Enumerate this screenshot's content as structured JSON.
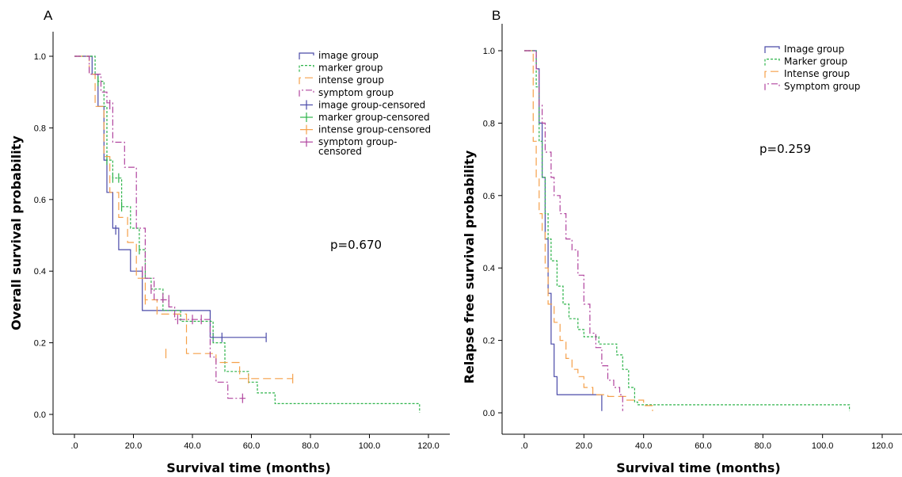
{
  "panels": {
    "a": {
      "letter": "A"
    },
    "b": {
      "letter": "B"
    }
  },
  "chart_data": [
    {
      "type": "line",
      "panel": "A",
      "xlabel": "Survival time (months)",
      "ylabel": "Overall survival probability",
      "xlim": [
        0,
        120
      ],
      "ylim": [
        0,
        1.0
      ],
      "x_ticks": [
        0,
        20,
        40,
        60,
        80,
        100,
        120
      ],
      "x_tick_labels": [
        ".0",
        "20.0",
        "40.0",
        "60.0",
        "80.0",
        "100.0",
        "120.0"
      ],
      "y_ticks": [
        0,
        0.2,
        0.4,
        0.6,
        0.8,
        1.0
      ],
      "y_tick_labels": [
        "0.0",
        "0.2",
        "0.4",
        "0.6",
        "0.8",
        "1.0"
      ],
      "grid": false,
      "legend_position": "top-right",
      "annotation": "p=0.670",
      "legend": [
        "image group",
        "marker group",
        "intense group",
        "symptom group",
        "image group-censored",
        "marker group-censored",
        "intense group-censored",
        "symptom group-\ncensored"
      ],
      "series": [
        {
          "name": "image group",
          "color": "#4a4aa8",
          "dash": "",
          "steps": [
            [
              0,
              1.0
            ],
            [
              6,
              0.95
            ],
            [
              8,
              0.86
            ],
            [
              10,
              0.71
            ],
            [
              11,
              0.62
            ],
            [
              13,
              0.52
            ],
            [
              15,
              0.46
            ],
            [
              19,
              0.4
            ],
            [
              23,
              0.29
            ],
            [
              46,
              0.215
            ],
            [
              65,
              0.215
            ]
          ],
          "censored": [
            [
              14,
              0.515
            ],
            [
              47,
              0.215
            ],
            [
              50,
              0.215
            ],
            [
              65,
              0.215
            ]
          ]
        },
        {
          "name": "marker group",
          "color": "#2db34a",
          "dash": "3,2",
          "steps": [
            [
              0,
              1.0
            ],
            [
              7,
              0.95
            ],
            [
              8,
              0.93
            ],
            [
              10,
              0.86
            ],
            [
              11,
              0.71
            ],
            [
              13,
              0.66
            ],
            [
              16,
              0.58
            ],
            [
              19,
              0.52
            ],
            [
              22,
              0.46
            ],
            [
              24,
              0.38
            ],
            [
              26,
              0.35
            ],
            [
              30,
              0.29
            ],
            [
              36,
              0.26
            ],
            [
              47,
              0.2
            ],
            [
              51,
              0.12
            ],
            [
              59,
              0.09
            ],
            [
              62,
              0.06
            ],
            [
              68,
              0.03
            ],
            [
              117,
              0.03
            ],
            [
              117,
              0.005
            ]
          ],
          "censored": [
            [
              8,
              0.93
            ],
            [
              11,
              0.71
            ],
            [
              13,
              0.66
            ],
            [
              15,
              0.66
            ],
            [
              16,
              0.58
            ],
            [
              22,
              0.46
            ]
          ]
        },
        {
          "name": "intense group",
          "color": "#f5a04a",
          "dash": "10,5",
          "steps": [
            [
              0,
              1.0
            ],
            [
              5,
              0.95
            ],
            [
              7,
              0.86
            ],
            [
              10,
              0.72
            ],
            [
              12,
              0.62
            ],
            [
              15,
              0.55
            ],
            [
              18,
              0.48
            ],
            [
              21,
              0.38
            ],
            [
              24,
              0.32
            ],
            [
              28,
              0.28
            ],
            [
              38,
              0.17
            ],
            [
              48,
              0.145
            ],
            [
              56,
              0.1
            ],
            [
              74,
              0.1
            ]
          ],
          "censored": [
            [
              24,
              0.32
            ],
            [
              31,
              0.17
            ],
            [
              59,
              0.1
            ],
            [
              74,
              0.1
            ]
          ]
        },
        {
          "name": "symptom group",
          "color": "#b0449e",
          "dash": "8,3,2,3",
          "steps": [
            [
              0,
              1.0
            ],
            [
              5,
              0.95
            ],
            [
              9,
              0.9
            ],
            [
              11,
              0.87
            ],
            [
              13,
              0.76
            ],
            [
              17,
              0.69
            ],
            [
              21,
              0.52
            ],
            [
              24,
              0.38
            ],
            [
              27,
              0.32
            ],
            [
              32,
              0.3
            ],
            [
              34,
              0.265
            ],
            [
              43,
              0.265
            ],
            [
              46,
              0.16
            ],
            [
              48,
              0.09
            ],
            [
              52,
              0.045
            ],
            [
              58,
              0.045
            ]
          ],
          "censored": [
            [
              12,
              0.865
            ],
            [
              23,
              0.4
            ],
            [
              26,
              0.35
            ],
            [
              30,
              0.325
            ],
            [
              32,
              0.32
            ],
            [
              35,
              0.265
            ],
            [
              40,
              0.265
            ],
            [
              43,
              0.265
            ],
            [
              57,
              0.045
            ]
          ]
        }
      ]
    },
    {
      "type": "line",
      "panel": "B",
      "xlabel": "Survival time (months)",
      "ylabel": "Relapse free survival probability",
      "xlim": [
        0,
        120
      ],
      "ylim": [
        0,
        1.0
      ],
      "x_ticks": [
        0,
        20,
        40,
        60,
        80,
        100,
        120
      ],
      "x_tick_labels": [
        ".0",
        "20.0",
        "40.0",
        "60.0",
        "80.0",
        "100.0",
        "120.0"
      ],
      "y_ticks": [
        0,
        0.2,
        0.4,
        0.6,
        0.8,
        1.0
      ],
      "y_tick_labels": [
        "0.0",
        "0.2",
        "0.4",
        "0.6",
        "0.8",
        "1.0"
      ],
      "grid": false,
      "legend_position": "top-right",
      "annotation": "p=0.259",
      "legend": [
        "Image group",
        "Marker group",
        "Intense group",
        "Symptom group"
      ],
      "series": [
        {
          "name": "Image group",
          "color": "#4a4aa8",
          "dash": "",
          "steps": [
            [
              0,
              1.0
            ],
            [
              4,
              0.95
            ],
            [
              5,
              0.8
            ],
            [
              6,
              0.65
            ],
            [
              7,
              0.48
            ],
            [
              8,
              0.33
            ],
            [
              9,
              0.19
            ],
            [
              10,
              0.1
            ],
            [
              11,
              0.05
            ],
            [
              23,
              0.05
            ],
            [
              26,
              0.05
            ],
            [
              26,
              0.005
            ]
          ],
          "censored": []
        },
        {
          "name": "Marker group",
          "color": "#2db34a",
          "dash": "3,2",
          "steps": [
            [
              0,
              1.0
            ],
            [
              4,
              0.9
            ],
            [
              5,
              0.75
            ],
            [
              6,
              0.65
            ],
            [
              7,
              0.55
            ],
            [
              8,
              0.48
            ],
            [
              9,
              0.42
            ],
            [
              11,
              0.35
            ],
            [
              13,
              0.3
            ],
            [
              15,
              0.26
            ],
            [
              18,
              0.23
            ],
            [
              20,
              0.21
            ],
            [
              25,
              0.19
            ],
            [
              31,
              0.16
            ],
            [
              33,
              0.12
            ],
            [
              35,
              0.07
            ],
            [
              37,
              0.03
            ],
            [
              38,
              0.022
            ],
            [
              109,
              0.022
            ],
            [
              109,
              0.005
            ]
          ],
          "censored": []
        },
        {
          "name": "Intense group",
          "color": "#f5a04a",
          "dash": "10,5",
          "steps": [
            [
              0,
              1.0
            ],
            [
              3,
              0.75
            ],
            [
              4,
              0.65
            ],
            [
              5,
              0.55
            ],
            [
              6,
              0.5
            ],
            [
              7,
              0.4
            ],
            [
              8,
              0.3
            ],
            [
              10,
              0.25
            ],
            [
              12,
              0.2
            ],
            [
              14,
              0.15
            ],
            [
              16,
              0.12
            ],
            [
              18,
              0.1
            ],
            [
              20,
              0.07
            ],
            [
              23,
              0.05
            ],
            [
              28,
              0.045
            ],
            [
              34,
              0.035
            ],
            [
              40,
              0.02
            ],
            [
              43,
              0.01
            ],
            [
              43,
              0.005
            ]
          ],
          "censored": []
        },
        {
          "name": "Symptom group",
          "color": "#b0449e",
          "dash": "8,3,2,3",
          "steps": [
            [
              0,
              1.0
            ],
            [
              4,
              0.95
            ],
            [
              5,
              0.85
            ],
            [
              6,
              0.8
            ],
            [
              7,
              0.72
            ],
            [
              9,
              0.65
            ],
            [
              10,
              0.6
            ],
            [
              12,
              0.55
            ],
            [
              14,
              0.48
            ],
            [
              16,
              0.45
            ],
            [
              18,
              0.38
            ],
            [
              20,
              0.3
            ],
            [
              22,
              0.22
            ],
            [
              24,
              0.18
            ],
            [
              26,
              0.13
            ],
            [
              28,
              0.09
            ],
            [
              30,
              0.07
            ],
            [
              32,
              0.05
            ],
            [
              33,
              0.02
            ],
            [
              33,
              0.005
            ]
          ],
          "censored": []
        }
      ]
    }
  ]
}
